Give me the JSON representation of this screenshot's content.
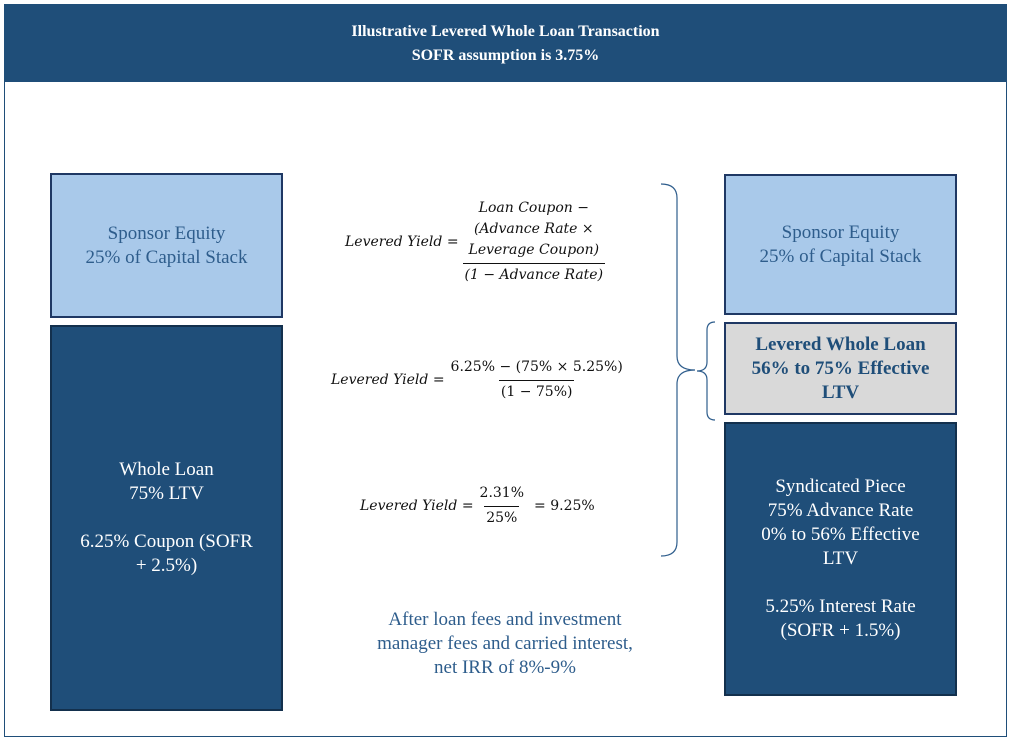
{
  "header": {
    "title": "Illustrative Levered Whole Loan Transaction",
    "subtitle": "SOFR assumption is 3.75%"
  },
  "left_stack": {
    "equity": {
      "line1": "Sponsor Equity",
      "line2": "25% of Capital Stack"
    },
    "whole_loan": {
      "line1": "Whole Loan",
      "line2": "75% LTV",
      "line3": "6.25% Coupon (SOFR",
      "line4": "+ 2.5%)"
    }
  },
  "right_stack": {
    "equity": {
      "line1": "Sponsor Equity",
      "line2": "25% of Capital Stack"
    },
    "levered_loan": {
      "line1": "Levered Whole Loan",
      "line2": "56% to 75% Effective",
      "line3": "LTV"
    },
    "syndicated": {
      "line1": "Syndicated Piece",
      "line2": "75% Advance Rate",
      "line3": "0% to 56% Effective",
      "line4": "LTV",
      "line5": "5.25% Interest Rate",
      "line6": "(SOFR + 1.5%)"
    }
  },
  "formulas": {
    "f1": {
      "label": "Levered Yield =",
      "num1": "Loan Coupon −",
      "num2": "(Advance Rate ×",
      "num3": "Leverage Coupon)",
      "den": "(1 − Advance Rate)"
    },
    "f2": {
      "label": "Levered Yield =",
      "num": "6.25% − (75% × 5.25%)",
      "den": "(1 − 75%)"
    },
    "f3": {
      "label": "Levered Yield =",
      "num": "2.31%",
      "den": "25%",
      "result": "= 9.25%"
    }
  },
  "note": {
    "line1": "After loan fees and investment",
    "line2": "manager fees and carried interest,",
    "line3": "net IRR of 8%-9%"
  },
  "colors": {
    "navy": "#1f4e79",
    "light_blue": "#a9c9ea",
    "grey": "#d9d9d9",
    "text_blue": "#2e5d8c"
  }
}
